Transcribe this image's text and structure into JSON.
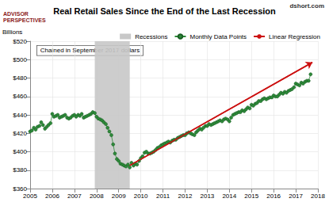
{
  "chart_data": {
    "type": "line",
    "title": "Real Retail Sales Since the End of the Last Recession",
    "ylabel": "Billions",
    "annotations": [
      "Chained in September 2017 dollars",
      "dshort.com",
      "ADVISOR\nPERSPECTIVES"
    ],
    "xlim": [
      2005,
      2018
    ],
    "xticks": [
      2005,
      2006,
      2007,
      2008,
      2009,
      2010,
      2011,
      2012,
      2013,
      2014,
      2015,
      2016,
      2017,
      2018
    ],
    "ylim": [
      360,
      520
    ],
    "yticks": [
      {
        "value": 360,
        "label": "$360"
      },
      {
        "value": 380,
        "label": "$380"
      },
      {
        "value": 400,
        "label": "$400"
      },
      {
        "value": 420,
        "label": "$420"
      },
      {
        "value": 440,
        "label": "$440"
      },
      {
        "value": 460,
        "label": "$460"
      },
      {
        "value": 480,
        "label": "$480"
      },
      {
        "value": 500,
        "label": "$500"
      },
      {
        "value": 520,
        "label": "$520"
      }
    ],
    "grid": true,
    "legend": "top-right",
    "shaded_ranges": [
      {
        "name": "Recessions",
        "color": "#c8c8c8",
        "start": 2007.92,
        "end": 2009.5
      }
    ],
    "series": [
      {
        "name": "Monthly Data Points",
        "type": "line",
        "color": "#2e8b3a",
        "marker": "circle",
        "line_style": "solid",
        "x": [
          2005.0,
          2005.08,
          2005.17,
          2005.25,
          2005.33,
          2005.42,
          2005.5,
          2005.58,
          2005.67,
          2005.75,
          2005.83,
          2005.92,
          2006.0,
          2006.08,
          2006.17,
          2006.25,
          2006.33,
          2006.42,
          2006.5,
          2006.58,
          2006.67,
          2006.75,
          2006.83,
          2006.92,
          2007.0,
          2007.08,
          2007.17,
          2007.25,
          2007.33,
          2007.42,
          2007.5,
          2007.58,
          2007.67,
          2007.75,
          2007.83,
          2007.92,
          2008.0,
          2008.08,
          2008.17,
          2008.25,
          2008.33,
          2008.42,
          2008.5,
          2008.58,
          2008.67,
          2008.75,
          2008.83,
          2008.92,
          2009.0,
          2009.08,
          2009.17,
          2009.25,
          2009.33,
          2009.42,
          2009.5,
          2009.58,
          2009.67,
          2009.75,
          2009.83,
          2009.92,
          2010.0,
          2010.08,
          2010.17,
          2010.25,
          2010.33,
          2010.42,
          2010.5,
          2010.58,
          2010.67,
          2010.75,
          2010.83,
          2010.92,
          2011.0,
          2011.08,
          2011.17,
          2011.25,
          2011.33,
          2011.42,
          2011.5,
          2011.58,
          2011.67,
          2011.75,
          2011.83,
          2011.92,
          2012.0,
          2012.08,
          2012.17,
          2012.25,
          2012.33,
          2012.42,
          2012.5,
          2012.58,
          2012.67,
          2012.75,
          2012.83,
          2012.92,
          2013.0,
          2013.08,
          2013.17,
          2013.25,
          2013.33,
          2013.42,
          2013.5,
          2013.58,
          2013.67,
          2013.75,
          2013.83,
          2013.92,
          2014.0,
          2014.08,
          2014.17,
          2014.25,
          2014.33,
          2014.42,
          2014.5,
          2014.58,
          2014.67,
          2014.75,
          2014.83,
          2014.92,
          2015.0,
          2015.08,
          2015.17,
          2015.25,
          2015.33,
          2015.42,
          2015.5,
          2015.58,
          2015.67,
          2015.75,
          2015.83,
          2015.92,
          2016.0,
          2016.08,
          2016.17,
          2016.25,
          2016.33,
          2016.42,
          2016.5,
          2016.58,
          2016.67,
          2016.75,
          2016.83,
          2016.92,
          2017.0,
          2017.08,
          2017.17,
          2017.25,
          2017.33,
          2017.42,
          2017.5,
          2017.58,
          2017.67
        ],
        "values": [
          422,
          423,
          426,
          424,
          427,
          428,
          432,
          429,
          425,
          427,
          429,
          431,
          441,
          438,
          439,
          440,
          437,
          438,
          439,
          440,
          437,
          436,
          437,
          439,
          440,
          438,
          440,
          439,
          441,
          437,
          438,
          439,
          440,
          441,
          443,
          442,
          438,
          436,
          435,
          434,
          432,
          430,
          426,
          422,
          418,
          408,
          398,
          392,
          390,
          387,
          386,
          385,
          384,
          386,
          383,
          388,
          385,
          387,
          386,
          390,
          393,
          395,
          399,
          400,
          398,
          398,
          399,
          400,
          402,
          404,
          405,
          407,
          408,
          409,
          410,
          411,
          410,
          412,
          413,
          413,
          415,
          416,
          417,
          418,
          418,
          420,
          421,
          420,
          419,
          418,
          421,
          423,
          425,
          424,
          426,
          428,
          428,
          430,
          429,
          430,
          431,
          432,
          433,
          434,
          433,
          435,
          436,
          435,
          433,
          437,
          440,
          441,
          442,
          443,
          443,
          445,
          444,
          446,
          448,
          447,
          451,
          450,
          452,
          453,
          455,
          455,
          457,
          458,
          457,
          458,
          459,
          459,
          461,
          460,
          460,
          462,
          464,
          463,
          465,
          464,
          466,
          467,
          468,
          470,
          474,
          473,
          472,
          475,
          474,
          476,
          477,
          477,
          484
        ]
      },
      {
        "name": "Linear Regression",
        "type": "line",
        "color": "#cc1111",
        "marker": "arrow",
        "line_style": "solid",
        "x": [
          2009.5,
          2017.75
        ],
        "values": [
          385,
          497
        ]
      }
    ]
  }
}
